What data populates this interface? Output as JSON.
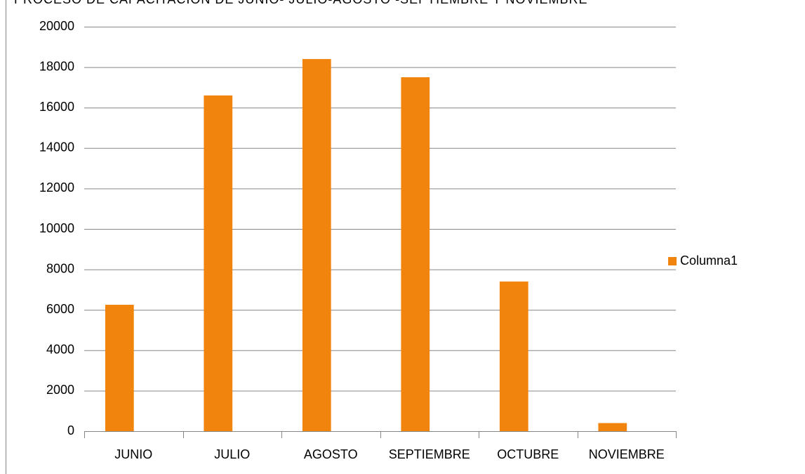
{
  "chart_data": {
    "type": "bar",
    "title": "PROCESO DE CAPACITACION DE JUNIO- JULIO-AGOSTO -SEPTIEMBRE Y NOVIEMBRE",
    "categories": [
      "JUNIO",
      "JULIO",
      "AGOSTO",
      "SEPTIEMBRE",
      "OCTUBRE",
      "NOVIEMBRE"
    ],
    "series": [
      {
        "name": "Columna1",
        "color": "#f0840c",
        "values": [
          6250,
          16600,
          18400,
          17500,
          7400,
          400
        ]
      }
    ],
    "ylim": [
      0,
      20000
    ],
    "yticks": [
      0,
      2000,
      4000,
      6000,
      8000,
      10000,
      12000,
      14000,
      16000,
      18000,
      20000
    ],
    "grid": true,
    "legend": "right"
  }
}
